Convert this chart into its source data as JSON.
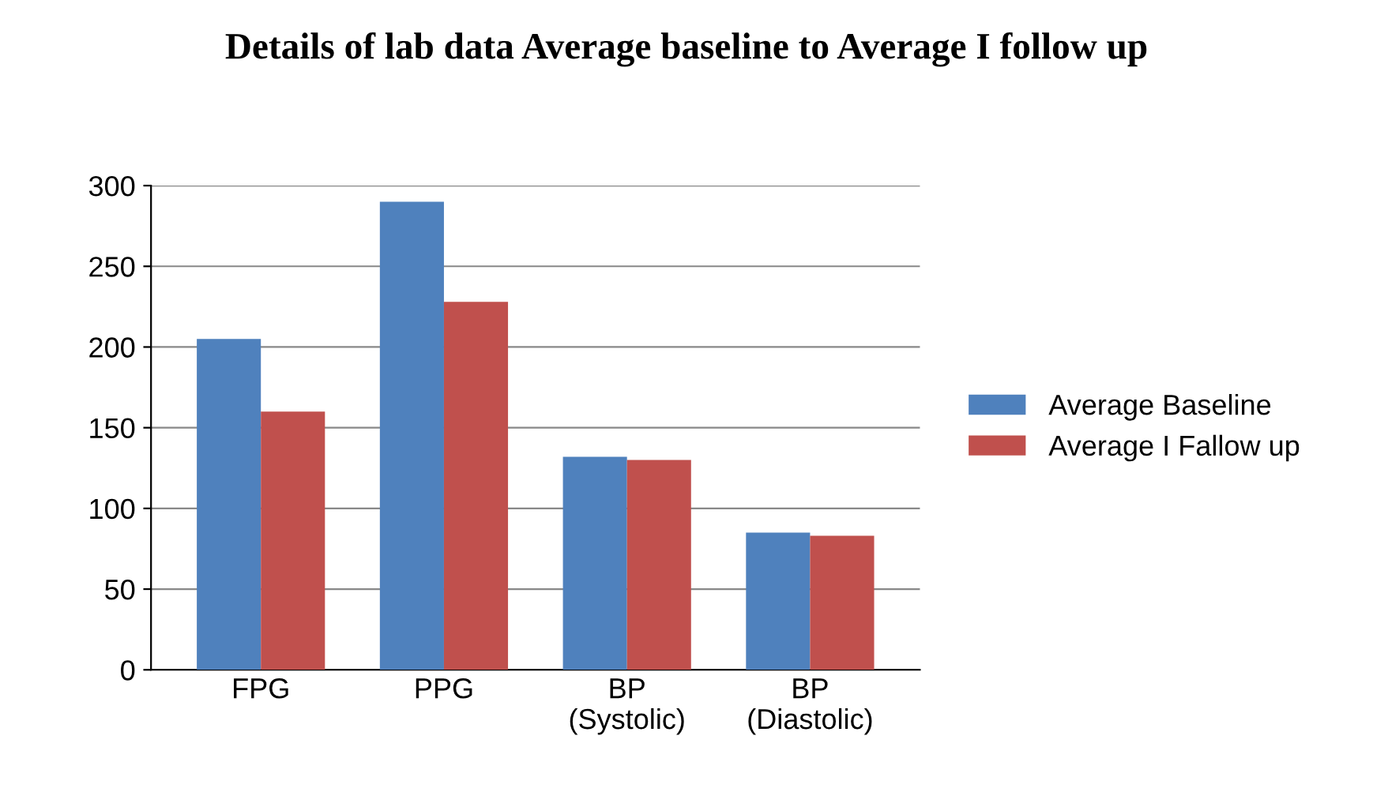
{
  "chart_data": {
    "type": "bar",
    "title": "Details of lab data Average baseline to Average I follow up",
    "categories": [
      "FPG",
      "PPG",
      "BP\n(Systolic)",
      "BP\n(Diastolic)"
    ],
    "series": [
      {
        "name": "Average Baseline",
        "color": "#4f81bd",
        "values": [
          205,
          290,
          132,
          85
        ]
      },
      {
        "name": "Average I Fallow up",
        "color": "#c0504d",
        "values": [
          160,
          228,
          130,
          83
        ]
      }
    ],
    "ylim": [
      0,
      300
    ],
    "yticks": [
      0,
      50,
      100,
      150,
      200,
      250,
      300
    ],
    "grid": "y",
    "legend": "right"
  }
}
